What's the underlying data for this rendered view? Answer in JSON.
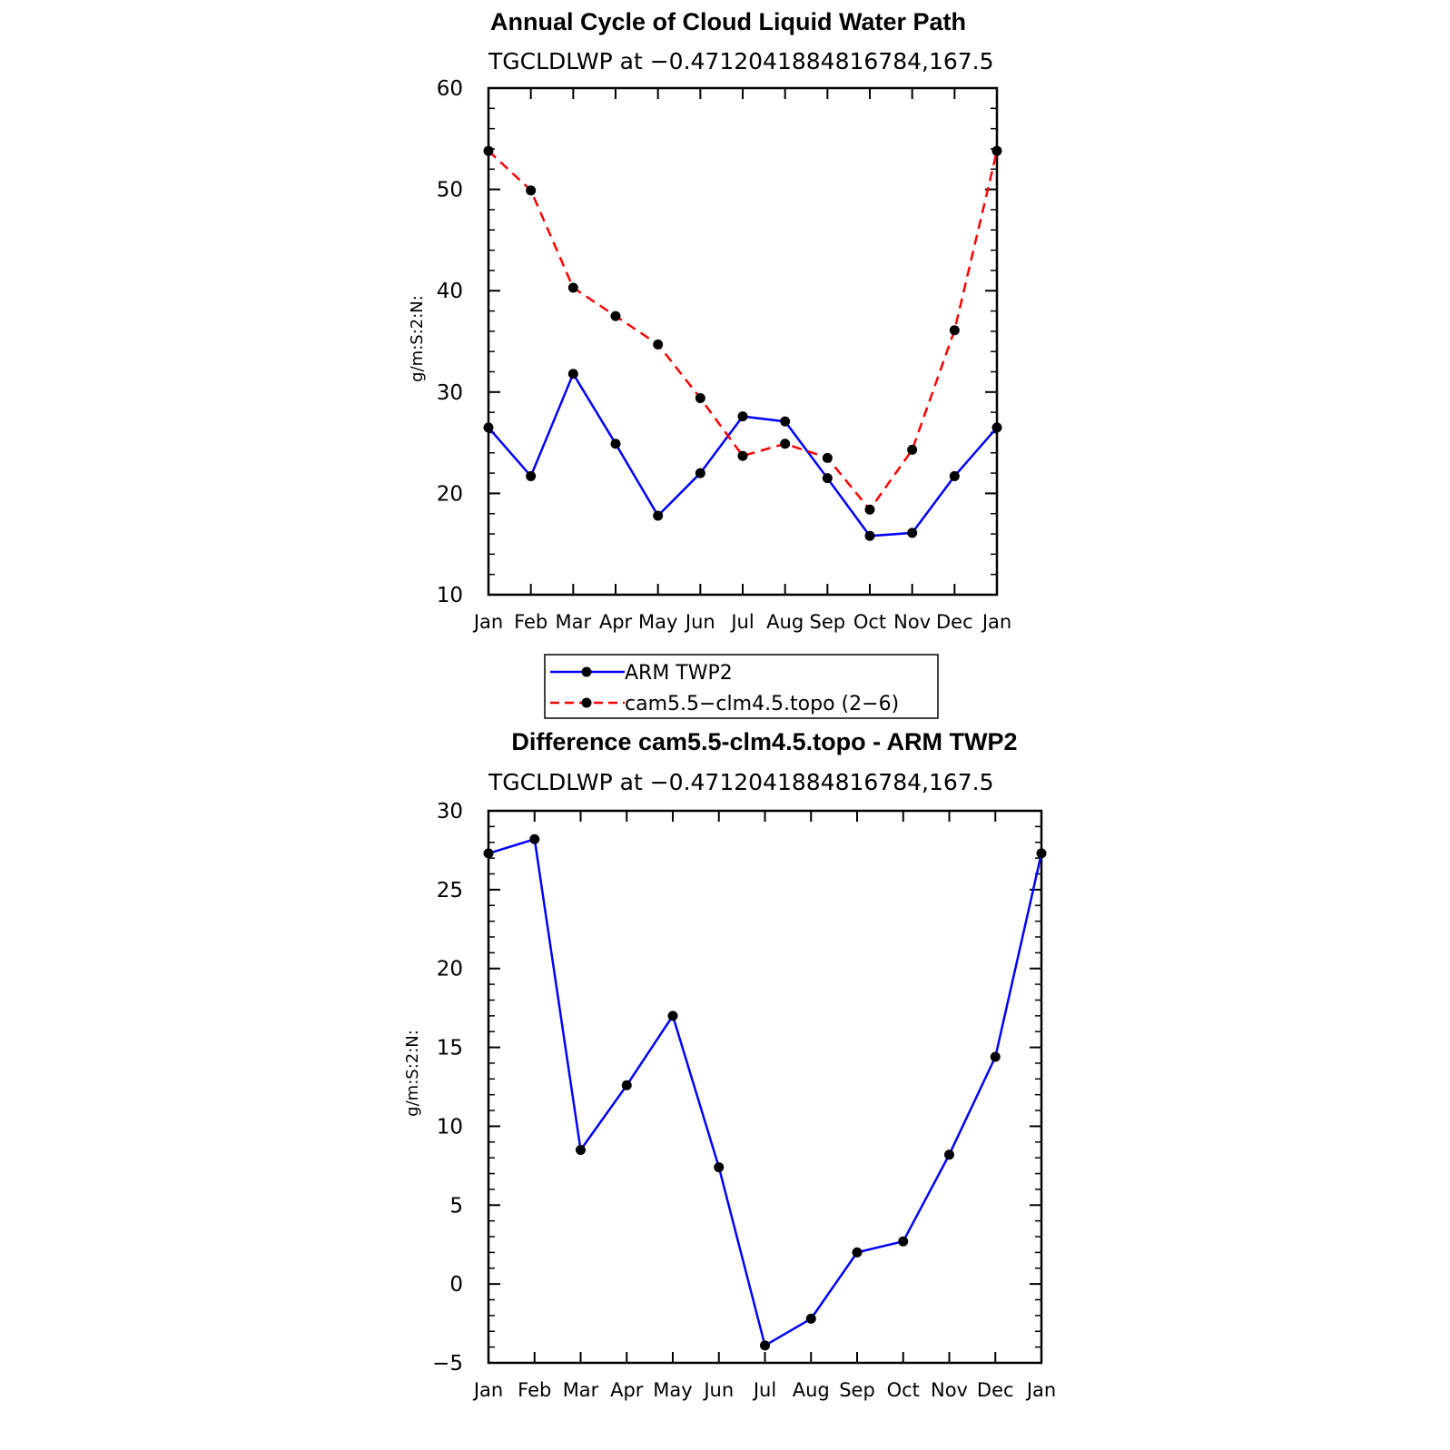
{
  "chart_data": [
    {
      "type": "line",
      "title": "Annual Cycle of Cloud Liquid Water Path",
      "subtitle": "TGCLDLWP at −0.4712041884816784,167.5",
      "ylabel": "g/m:S:2:N:",
      "xlabel": "",
      "categories": [
        "Jan",
        "Feb",
        "Mar",
        "Apr",
        "May",
        "Jun",
        "Jul",
        "Aug",
        "Sep",
        "Oct",
        "Nov",
        "Dec",
        "Jan"
      ],
      "ylim": [
        10,
        60
      ],
      "yticks": [
        10,
        20,
        30,
        40,
        50,
        60
      ],
      "series": [
        {
          "name": "ARM TWP2",
          "color": "#0000ff",
          "dash": "solid",
          "values": [
            26.5,
            21.7,
            31.8,
            24.9,
            17.8,
            22.0,
            27.6,
            27.1,
            21.5,
            15.8,
            16.1,
            21.7,
            26.5
          ]
        },
        {
          "name": "cam5.5−clm4.5.topo (2−6)",
          "color": "#ff0000",
          "dash": "dashed",
          "values": [
            53.8,
            49.9,
            40.3,
            37.5,
            34.7,
            29.4,
            23.7,
            24.9,
            23.5,
            18.4,
            24.3,
            36.1,
            53.8
          ]
        }
      ],
      "legend": "below"
    },
    {
      "type": "line",
      "title": "Difference cam5.5-clm4.5.topo - ARM TWP2",
      "subtitle": "TGCLDLWP at −0.4712041884816784,167.5",
      "ylabel": "g/m:S:2:N:",
      "xlabel": "",
      "categories": [
        "Jan",
        "Feb",
        "Mar",
        "Apr",
        "May",
        "Jun",
        "Jul",
        "Aug",
        "Sep",
        "Oct",
        "Nov",
        "Dec",
        "Jan"
      ],
      "ylim": [
        -5,
        30
      ],
      "yticks": [
        -5,
        0,
        5,
        10,
        15,
        20,
        25,
        30
      ],
      "ytick_labels": [
        "−5",
        "0",
        "5",
        "10",
        "15",
        "20",
        "25",
        "30"
      ],
      "series": [
        {
          "color": "#0000ff",
          "dash": "solid",
          "values": [
            27.3,
            28.2,
            8.5,
            12.6,
            17.0,
            7.4,
            -3.9,
            -2.2,
            2.0,
            2.7,
            8.2,
            14.4,
            27.3
          ]
        }
      ]
    }
  ]
}
